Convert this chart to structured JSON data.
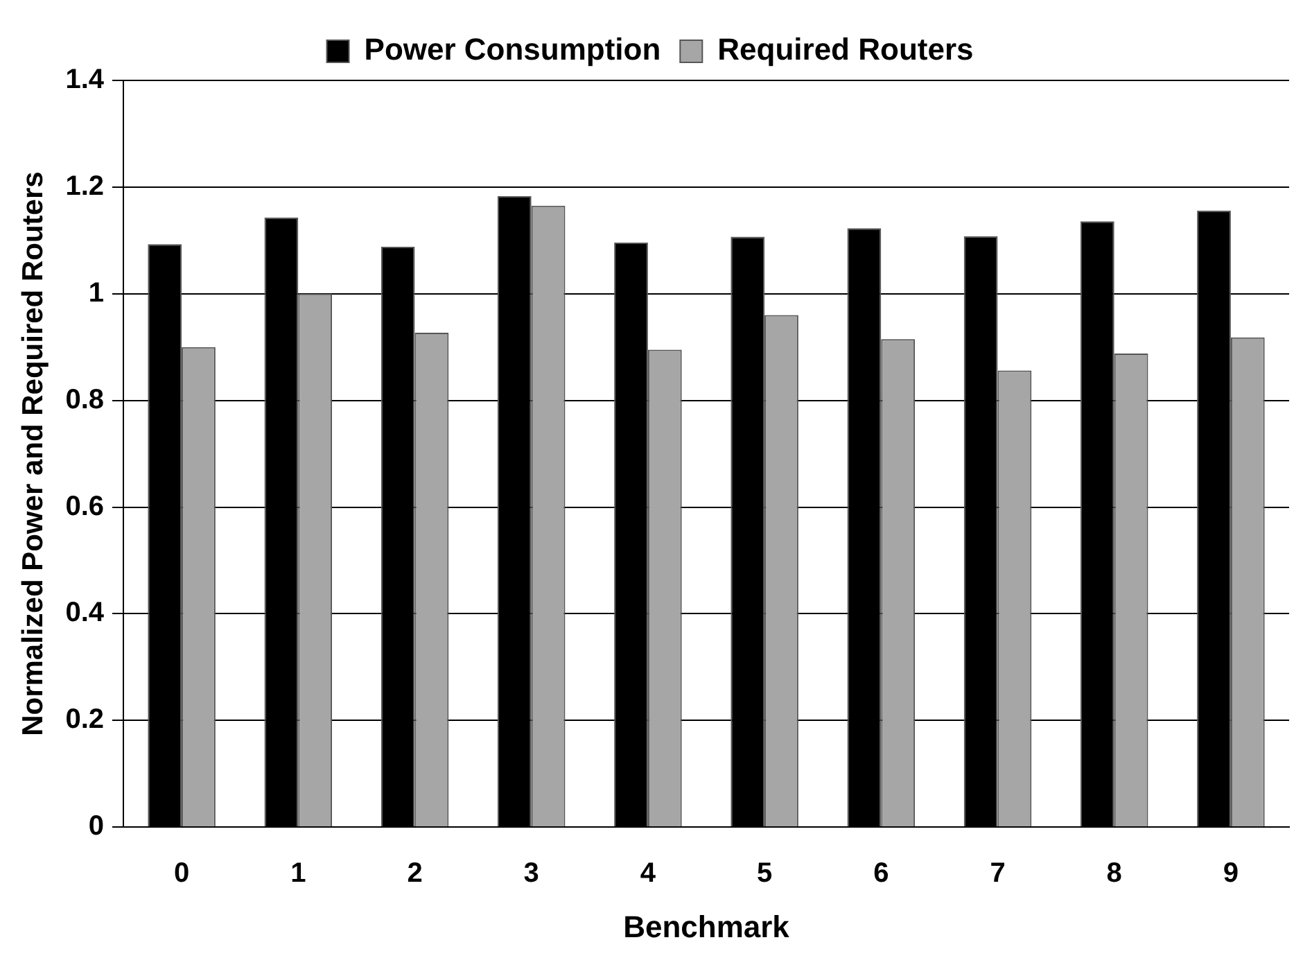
{
  "chart_data": {
    "type": "bar",
    "xlabel": "Benchmark",
    "ylabel": "Normalized Power and Required Routers",
    "categories": [
      "0",
      "1",
      "2",
      "3",
      "4",
      "5",
      "6",
      "7",
      "8",
      "9"
    ],
    "series": [
      {
        "name": "Power Consumption",
        "color": "#000000",
        "values": [
          1.093,
          1.143,
          1.088,
          1.183,
          1.096,
          1.107,
          1.123,
          1.108,
          1.136,
          1.156
        ]
      },
      {
        "name": "Required Routers",
        "color": "#a6a6a6",
        "values": [
          0.9,
          1.0,
          0.927,
          1.165,
          0.895,
          0.96,
          0.915,
          0.856,
          0.888,
          0.918
        ]
      }
    ],
    "ylim": [
      0,
      1.4
    ],
    "yticks": [
      0,
      0.2,
      0.4,
      0.6,
      0.8,
      1,
      1.2,
      1.4
    ],
    "grid": "y",
    "legend": "top"
  }
}
